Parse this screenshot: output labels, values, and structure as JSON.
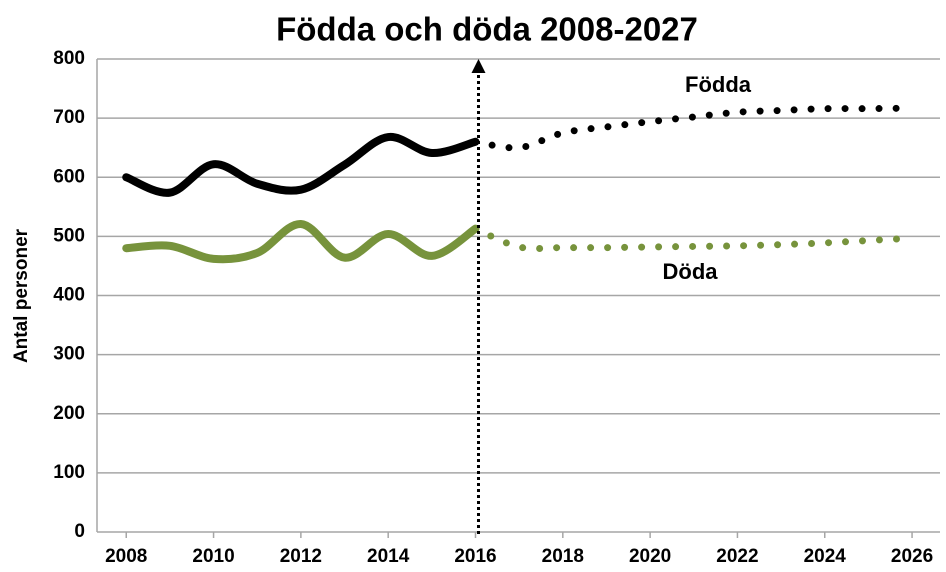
{
  "chart_data": {
    "type": "line",
    "title": "Födda och döda 2008-2027",
    "y_label": "Antal personer",
    "x": [
      2008,
      2009,
      2010,
      2011,
      2012,
      2013,
      2014,
      2015,
      2016,
      2017,
      2018,
      2019,
      2020,
      2021,
      2022,
      2023,
      2024,
      2025,
      2026
    ],
    "series": [
      {
        "name": "Födda",
        "color": "#000000",
        "values": [
          600,
          574,
          622,
          589,
          579,
          621,
          668,
          641,
          660,
          null,
          null,
          null,
          null,
          null,
          null,
          null,
          null,
          null,
          null
        ],
        "forecast": [
          null,
          null,
          null,
          null,
          null,
          null,
          null,
          null,
          660,
          650,
          675,
          685,
          694,
          702,
          710,
          713,
          716,
          716,
          717
        ]
      },
      {
        "name": "Döda",
        "color": "#77933c",
        "values": [
          480,
          484,
          462,
          472,
          521,
          464,
          504,
          467,
          513,
          null,
          null,
          null,
          null,
          null,
          null,
          null,
          null,
          null,
          null
        ],
        "forecast": [
          null,
          null,
          null,
          null,
          null,
          null,
          null,
          null,
          513,
          482,
          481,
          481,
          482,
          483,
          484,
          486,
          489,
          493,
          497
        ]
      }
    ],
    "xlim": [
      2007.33,
      2026.64
    ],
    "xticks": [
      2008,
      2010,
      2012,
      2014,
      2016,
      2018,
      2020,
      2022,
      2024,
      2026
    ],
    "ylim": [
      0,
      800
    ],
    "yticks": [
      0,
      100,
      200,
      300,
      400,
      500,
      600,
      700,
      800
    ],
    "grid": true
  }
}
